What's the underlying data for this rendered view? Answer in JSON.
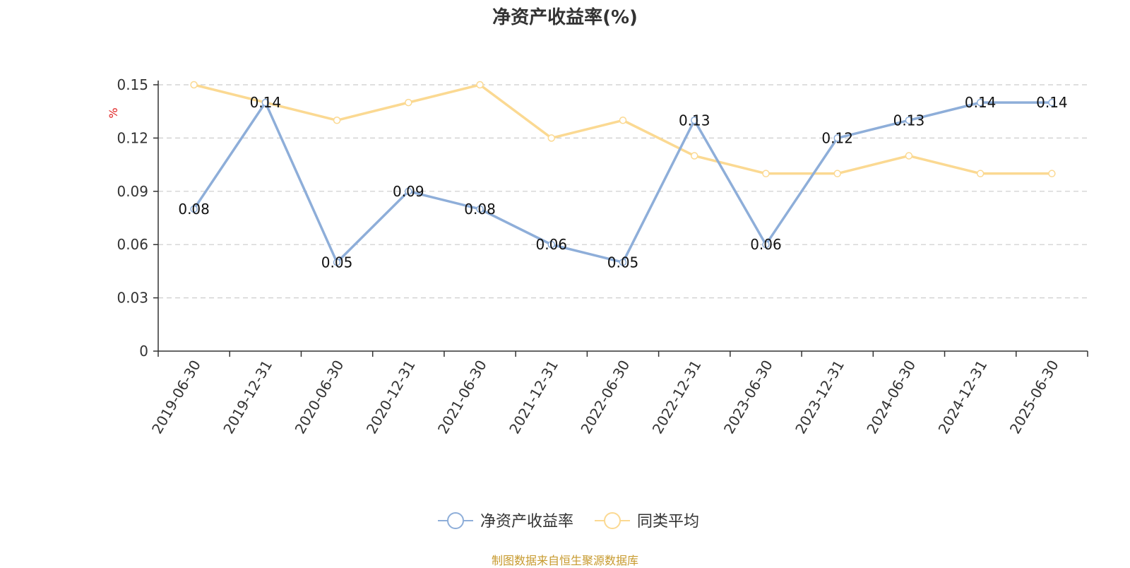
{
  "chart_data": {
    "type": "line",
    "title": "净资产收益率(%)",
    "ylabel": "%",
    "xlabel": "",
    "ylim": [
      0,
      0.15
    ],
    "yticks": [
      0,
      0.03,
      0.06,
      0.09,
      0.12,
      0.15
    ],
    "grid": true,
    "legend_position": "bottom",
    "categories": [
      "2019-06-30",
      "2019-12-31",
      "2020-06-30",
      "2020-12-31",
      "2021-06-30",
      "2021-12-31",
      "2022-06-30",
      "2022-12-31",
      "2023-06-30",
      "2023-12-31",
      "2024-06-30",
      "2024-12-31",
      "2025-06-30"
    ],
    "series": [
      {
        "name": "净资产收益率",
        "color": "#8eaed9",
        "show_labels": true,
        "values": [
          0.08,
          0.14,
          0.05,
          0.09,
          0.08,
          0.06,
          0.05,
          0.13,
          0.06,
          0.12,
          0.13,
          0.14,
          0.14
        ]
      },
      {
        "name": "同类平均",
        "color": "#fbd992",
        "show_labels": false,
        "values": [
          0.15,
          0.14,
          0.13,
          0.14,
          0.15,
          0.12,
          0.13,
          0.11,
          0.1,
          0.1,
          0.11,
          0.1,
          0.1
        ]
      }
    ]
  },
  "source_note": "制图数据来自恒生聚源数据库",
  "colors": {
    "axis": "#333333",
    "grid": "#cccccc",
    "ylabel": "#e02020",
    "source": "#c79a2e"
  }
}
